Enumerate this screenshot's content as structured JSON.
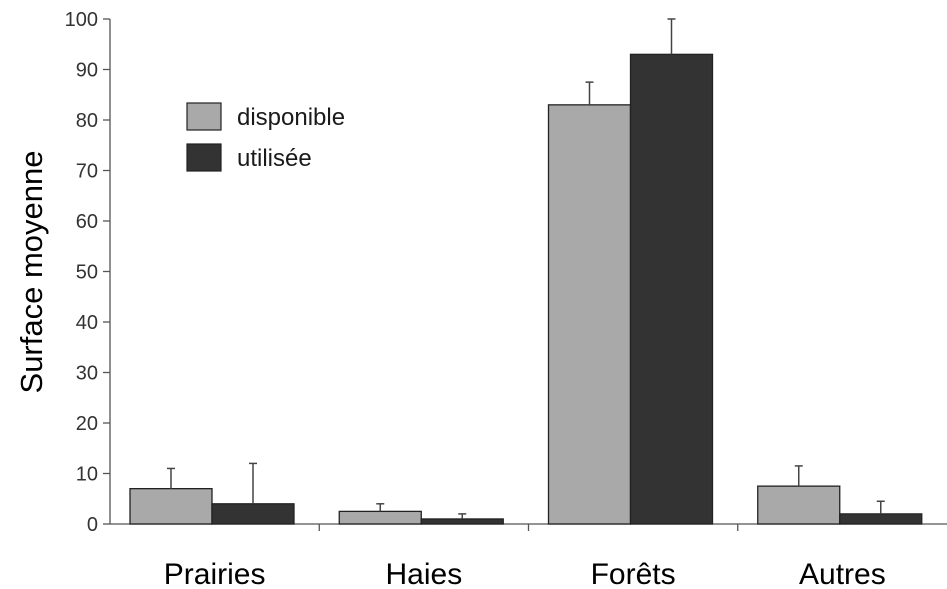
{
  "chart_data": {
    "type": "bar",
    "ylabel": "Surface moyenne",
    "ylim": [
      0,
      100
    ],
    "yticks": [
      0,
      10,
      20,
      30,
      40,
      50,
      60,
      70,
      80,
      90,
      100
    ],
    "categories": [
      "Prairies",
      "Haies",
      "Forêts",
      "Autres"
    ],
    "series": [
      {
        "name": "disponible",
        "color": "#a9a9a9",
        "values": [
          7,
          2.5,
          83,
          7.5
        ],
        "errors": [
          4,
          1.5,
          4.5,
          4
        ]
      },
      {
        "name": "utilisée",
        "color": "#333333",
        "values": [
          4,
          1,
          93,
          2
        ],
        "errors": [
          8,
          1,
          7,
          2.5
        ]
      }
    ],
    "legend_position": "top-left",
    "grid": false
  }
}
